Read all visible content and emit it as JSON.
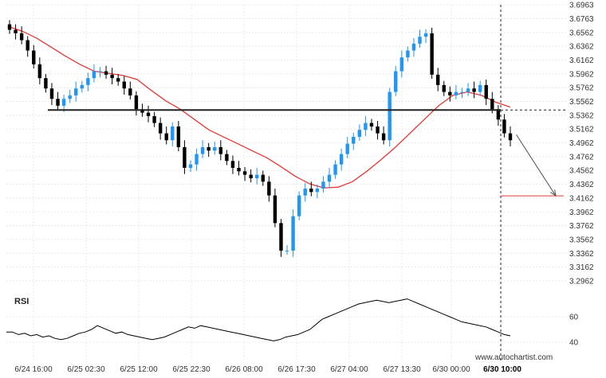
{
  "chart_data": {
    "type": "candlestick",
    "price_axis": {
      "ticks": [
        3.6963,
        3.6763,
        3.6562,
        3.6362,
        3.6162,
        3.5962,
        3.5762,
        3.5562,
        3.5362,
        3.5162,
        3.4962,
        3.4762,
        3.4562,
        3.4362,
        3.4162,
        3.3962,
        3.3762,
        3.3562,
        3.3362,
        3.3162,
        3.2962
      ],
      "ylim": [
        3.2962,
        3.6963
      ]
    },
    "time_axis": {
      "ticks": [
        "6/24 16:00",
        "6/25 02:30",
        "6/25 12:00",
        "6/25 22:30",
        "6/26 08:00",
        "6/26 17:30",
        "6/27 04:00",
        "6/27 13:30",
        "6/30 00:00",
        "6/30 10:00"
      ],
      "highlight": "6/30 10:00"
    },
    "close_series_estimated": [
      3.66,
      3.655,
      3.645,
      3.63,
      3.61,
      3.59,
      3.575,
      3.56,
      3.55,
      3.56,
      3.565,
      3.575,
      3.58,
      3.59,
      3.6,
      3.6,
      3.595,
      3.59,
      3.585,
      3.575,
      3.565,
      3.545,
      3.54,
      3.535,
      3.525,
      3.51,
      3.5,
      3.52,
      3.49,
      3.46,
      3.465,
      3.48,
      3.49,
      3.485,
      3.49,
      3.48,
      3.47,
      3.46,
      3.455,
      3.45,
      3.445,
      3.45,
      3.44,
      3.42,
      3.38,
      3.34,
      3.34,
      3.39,
      3.42,
      3.43,
      3.425,
      3.43,
      3.44,
      3.45,
      3.465,
      3.48,
      3.495,
      3.505,
      3.515,
      3.525,
      3.52,
      3.51,
      3.5,
      3.57,
      3.6,
      3.62,
      3.63,
      3.64,
      3.65,
      3.655,
      3.595,
      3.58,
      3.57,
      3.565,
      3.57,
      3.57,
      3.575,
      3.57,
      3.58,
      3.56,
      3.545,
      3.53,
      3.51,
      3.5
    ],
    "moving_average_estimated": [
      3.665,
      3.658,
      3.648,
      3.635,
      3.622,
      3.61,
      3.6,
      3.597,
      3.594,
      3.588,
      3.572,
      3.557,
      3.545,
      3.53,
      3.515,
      3.505,
      3.495,
      3.485,
      3.475,
      3.462,
      3.448,
      3.437,
      3.431,
      3.432,
      3.44,
      3.455,
      3.472,
      3.49,
      3.51,
      3.53,
      3.55,
      3.565,
      3.57,
      3.565,
      3.555,
      3.548
    ],
    "resistance_level": 3.5438,
    "target_level": 3.4195,
    "forecast_arrow": {
      "from": [
        84,
        3.508
      ],
      "to": [
        95,
        3.4195
      ]
    },
    "rsi": {
      "label": "RSI",
      "ticks": [
        60,
        40
      ],
      "values_estimated": [
        48,
        48,
        46,
        47,
        45,
        46,
        44,
        45,
        43,
        42,
        43,
        45,
        47,
        48,
        50,
        53,
        51,
        49,
        47,
        48,
        46,
        45,
        44,
        43,
        42,
        43,
        44,
        46,
        48,
        50,
        52,
        51,
        53,
        52,
        51,
        50,
        49,
        48,
        47,
        46,
        45,
        44,
        43,
        42,
        41,
        42,
        44,
        45,
        46,
        48,
        50,
        54,
        58,
        60,
        62,
        64,
        66,
        68,
        70,
        71,
        72,
        73,
        72,
        71,
        72,
        73,
        74,
        72,
        70,
        68,
        66,
        64,
        62,
        60,
        58,
        56,
        55,
        54,
        53,
        52,
        50,
        48,
        46,
        45
      ]
    }
  },
  "watermark": "www.autochartist.com"
}
